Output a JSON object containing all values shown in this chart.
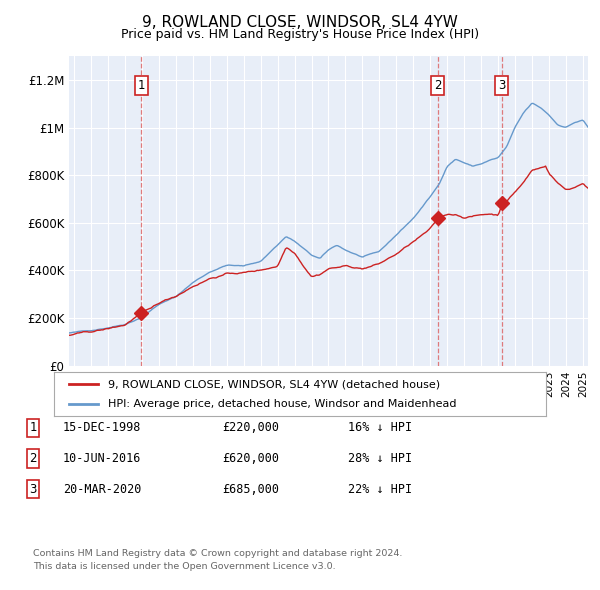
{
  "title": "9, ROWLAND CLOSE, WINDSOR, SL4 4YW",
  "subtitle": "Price paid vs. HM Land Registry's House Price Index (HPI)",
  "property_label": "9, ROWLAND CLOSE, WINDSOR, SL4 4YW (detached house)",
  "hpi_label": "HPI: Average price, detached house, Windsor and Maidenhead",
  "footer1": "Contains HM Land Registry data © Crown copyright and database right 2024.",
  "footer2": "This data is licensed under the Open Government Licence v3.0.",
  "transactions": [
    {
      "num": 1,
      "date": "15-DEC-1998",
      "price": "£220,000",
      "pct": "16%",
      "dir": "↓",
      "year": 1998.96,
      "price_val": 220000
    },
    {
      "num": 2,
      "date": "10-JUN-2016",
      "price": "£620,000",
      "pct": "28%",
      "dir": "↓",
      "year": 2016.44,
      "price_val": 620000
    },
    {
      "num": 3,
      "date": "20-MAR-2020",
      "price": "£685,000",
      "pct": "22%",
      "dir": "↓",
      "year": 2020.22,
      "price_val": 685000
    }
  ],
  "ylim": [
    0,
    1300000
  ],
  "yticks": [
    0,
    200000,
    400000,
    600000,
    800000,
    1000000,
    1200000
  ],
  "ytick_labels": [
    "£0",
    "£200K",
    "£400K",
    "£600K",
    "£800K",
    "£1M",
    "£1.2M"
  ],
  "xlim_start": 1994.7,
  "xlim_end": 2025.3,
  "plot_bg": "#e8eef8",
  "grid_color": "#ffffff",
  "hpi_color": "#6699cc",
  "price_color": "#cc2222",
  "dashed_color": "#dd6666"
}
